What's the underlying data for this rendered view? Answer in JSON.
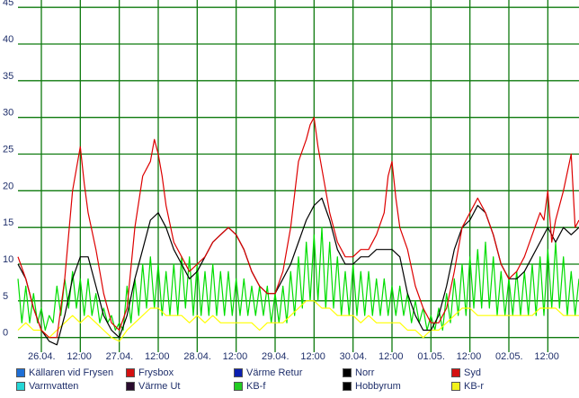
{
  "chart_data": {
    "type": "line",
    "ylim": [
      -2,
      46
    ],
    "yticks": [
      0,
      5,
      10,
      15,
      20,
      25,
      30,
      35,
      40,
      45
    ],
    "xlim": [
      0,
      7.2
    ],
    "xticks": [
      {
        "x": 0.3,
        "label": "26.04."
      },
      {
        "x": 0.8,
        "label": "12:00"
      },
      {
        "x": 1.3,
        "label": "27.04."
      },
      {
        "x": 1.8,
        "label": "12:00"
      },
      {
        "x": 2.3,
        "label": "28.04."
      },
      {
        "x": 2.8,
        "label": "12:00"
      },
      {
        "x": 3.3,
        "label": "29.04."
      },
      {
        "x": 3.8,
        "label": "12:00"
      },
      {
        "x": 4.3,
        "label": "30.04."
      },
      {
        "x": 4.8,
        "label": "12:00"
      },
      {
        "x": 5.3,
        "label": "01.05."
      },
      {
        "x": 5.8,
        "label": "12:00"
      },
      {
        "x": 6.3,
        "label": "02.05."
      },
      {
        "x": 6.8,
        "label": "12:00"
      }
    ],
    "grid": true,
    "legend_position": "bottom",
    "series": [
      {
        "name": "KB-f",
        "color": "#00dd00",
        "x": [
          0.0,
          0.05,
          0.1,
          0.15,
          0.2,
          0.25,
          0.3,
          0.35,
          0.4,
          0.45,
          0.5,
          0.55,
          0.6,
          0.65,
          0.7,
          0.75,
          0.8,
          0.85,
          0.9,
          0.95,
          1.0,
          1.05,
          1.1,
          1.15,
          1.2,
          1.25,
          1.3,
          1.35,
          1.4,
          1.45,
          1.5,
          1.55,
          1.6,
          1.65,
          1.7,
          1.75,
          1.8,
          1.85,
          1.9,
          1.95,
          2.0,
          2.05,
          2.1,
          2.15,
          2.2,
          2.25,
          2.3,
          2.35,
          2.4,
          2.45,
          2.5,
          2.55,
          2.6,
          2.65,
          2.7,
          2.75,
          2.8,
          2.85,
          2.9,
          2.95,
          3.0,
          3.05,
          3.1,
          3.15,
          3.2,
          3.25,
          3.3,
          3.35,
          3.4,
          3.45,
          3.5,
          3.55,
          3.6,
          3.65,
          3.7,
          3.75,
          3.8,
          3.85,
          3.9,
          3.95,
          4.0,
          4.05,
          4.1,
          4.15,
          4.2,
          4.25,
          4.3,
          4.35,
          4.4,
          4.45,
          4.5,
          4.55,
          4.6,
          4.65,
          4.7,
          4.75,
          4.8,
          4.85,
          4.9,
          4.95,
          5.0,
          5.05,
          5.1,
          5.15,
          5.2,
          5.25,
          5.3,
          5.35,
          5.4,
          5.45,
          5.5,
          5.55,
          5.6,
          5.65,
          5.7,
          5.75,
          5.8,
          5.85,
          5.9,
          5.95,
          6.0,
          6.05,
          6.1,
          6.15,
          6.2,
          6.25,
          6.3,
          6.35,
          6.4,
          6.45,
          6.5,
          6.55,
          6.6,
          6.65,
          6.7,
          6.75,
          6.8,
          6.85,
          6.9,
          6.95,
          7.0,
          7.05,
          7.1,
          7.15,
          7.2
        ],
        "y": [
          8,
          2,
          7,
          2,
          6,
          2,
          4,
          1,
          3,
          2,
          7,
          3,
          8,
          4,
          9,
          4,
          8,
          3,
          8,
          3,
          6,
          2,
          4,
          2,
          3,
          1,
          2,
          1,
          7,
          2,
          8,
          3,
          10,
          4,
          11,
          4,
          10,
          3,
          9,
          3,
          10,
          3,
          11,
          4,
          11,
          3,
          10,
          3,
          9,
          3,
          10,
          3,
          9,
          3,
          9,
          3,
          8,
          3,
          8,
          3,
          7,
          3,
          7,
          3,
          7,
          2,
          6,
          2,
          7,
          2,
          9,
          3,
          11,
          4,
          13,
          5,
          14,
          5,
          15,
          4,
          13,
          4,
          11,
          3,
          9,
          3,
          10,
          3,
          9,
          3,
          9,
          3,
          8,
          3,
          8,
          3,
          7,
          3,
          7,
          3,
          6,
          2,
          5,
          2,
          4,
          1,
          3,
          1,
          4,
          1,
          6,
          2,
          8,
          3,
          10,
          3,
          11,
          4,
          12,
          4,
          13,
          4,
          11,
          3,
          9,
          3,
          8,
          3,
          9,
          3,
          9,
          3,
          10,
          3,
          11,
          3,
          12,
          4,
          13,
          4,
          11,
          3,
          9,
          3,
          8
        ]
      },
      {
        "name": "KB-r",
        "color": "#ffff00",
        "x": [
          0.0,
          0.1,
          0.2,
          0.3,
          0.4,
          0.5,
          0.6,
          0.7,
          0.8,
          0.9,
          1.0,
          1.1,
          1.2,
          1.3,
          1.4,
          1.5,
          1.6,
          1.7,
          1.8,
          1.9,
          2.0,
          2.1,
          2.2,
          2.3,
          2.4,
          2.5,
          2.6,
          2.7,
          2.8,
          2.9,
          3.0,
          3.1,
          3.2,
          3.3,
          3.4,
          3.5,
          3.6,
          3.7,
          3.8,
          3.9,
          4.0,
          4.1,
          4.2,
          4.3,
          4.4,
          4.5,
          4.6,
          4.7,
          4.8,
          4.9,
          5.0,
          5.1,
          5.2,
          5.3,
          5.4,
          5.5,
          5.6,
          5.7,
          5.8,
          5.9,
          6.0,
          6.1,
          6.2,
          6.3,
          6.4,
          6.5,
          6.6,
          6.7,
          6.8,
          6.9,
          7.0,
          7.1,
          7.2
        ],
        "y": [
          1,
          2,
          1,
          1,
          0,
          1,
          2,
          3,
          2,
          3,
          2,
          1,
          0,
          -0.5,
          1,
          2,
          3,
          4,
          4,
          3,
          3,
          3,
          2,
          3,
          2,
          3,
          2,
          2,
          2,
          2,
          2,
          1,
          2,
          2,
          2,
          3,
          4,
          5,
          5,
          4,
          4,
          3,
          3,
          3,
          2,
          3,
          2,
          2,
          2,
          2,
          1,
          1,
          0,
          1,
          1,
          2,
          3,
          4,
          4,
          3,
          3,
          3,
          3,
          3,
          3,
          3,
          3,
          4,
          4,
          4,
          3,
          3,
          3
        ]
      },
      {
        "name": "Norr",
        "color": "#000000",
        "x": [
          0.0,
          0.1,
          0.2,
          0.3,
          0.4,
          0.5,
          0.6,
          0.7,
          0.8,
          0.9,
          1.0,
          1.1,
          1.2,
          1.3,
          1.4,
          1.5,
          1.6,
          1.7,
          1.8,
          1.9,
          2.0,
          2.1,
          2.2,
          2.3,
          2.4,
          2.5,
          2.6,
          2.7,
          2.8,
          2.9,
          3.0,
          3.1,
          3.2,
          3.3,
          3.4,
          3.5,
          3.6,
          3.7,
          3.8,
          3.9,
          4.0,
          4.1,
          4.2,
          4.3,
          4.4,
          4.5,
          4.6,
          4.7,
          4.8,
          4.9,
          5.0,
          5.1,
          5.2,
          5.3,
          5.4,
          5.5,
          5.6,
          5.7,
          5.8,
          5.9,
          6.0,
          6.1,
          6.2,
          6.3,
          6.4,
          6.5,
          6.6,
          6.7,
          6.8,
          6.9,
          7.0,
          7.1,
          7.2
        ],
        "y": [
          10,
          8,
          4,
          1,
          -0.5,
          -1,
          3,
          8,
          11,
          11,
          7,
          3,
          1,
          0,
          3,
          8,
          12,
          16,
          17,
          15,
          12,
          10,
          8,
          9,
          11,
          13,
          14,
          15,
          14,
          12,
          9,
          7,
          6,
          6,
          8,
          10,
          13,
          16,
          18,
          19,
          16,
          12,
          10,
          10,
          11,
          11,
          12,
          12,
          12,
          11,
          6,
          3,
          1,
          1,
          3,
          7,
          12,
          15,
          16,
          18,
          17,
          14,
          10,
          8,
          8,
          9,
          11,
          13,
          15,
          13,
          15,
          14,
          15
        ]
      },
      {
        "name": "Syd",
        "color": "#dd0000",
        "x": [
          0.0,
          0.1,
          0.2,
          0.3,
          0.4,
          0.5,
          0.6,
          0.7,
          0.75,
          0.8,
          0.85,
          0.9,
          1.0,
          1.1,
          1.2,
          1.3,
          1.4,
          1.5,
          1.6,
          1.7,
          1.75,
          1.8,
          1.85,
          1.9,
          2.0,
          2.1,
          2.2,
          2.3,
          2.4,
          2.5,
          2.6,
          2.7,
          2.8,
          2.9,
          3.0,
          3.1,
          3.2,
          3.3,
          3.4,
          3.5,
          3.6,
          3.7,
          3.75,
          3.8,
          3.85,
          3.9,
          4.0,
          4.1,
          4.2,
          4.3,
          4.4,
          4.5,
          4.6,
          4.7,
          4.75,
          4.8,
          4.85,
          4.9,
          5.0,
          5.1,
          5.2,
          5.3,
          5.4,
          5.5,
          5.6,
          5.7,
          5.8,
          5.9,
          6.0,
          6.1,
          6.2,
          6.3,
          6.4,
          6.5,
          6.6,
          6.7,
          6.75,
          6.8,
          6.85,
          6.9,
          7.0,
          7.1,
          7.15,
          7.2
        ],
        "y": [
          11,
          8,
          4,
          1,
          0,
          0,
          8,
          20,
          23,
          26,
          21,
          17,
          12,
          6,
          2,
          1,
          4,
          15,
          22,
          24,
          27,
          25,
          22,
          18,
          13,
          11,
          9,
          10,
          11,
          13,
          14,
          15,
          14,
          12,
          9,
          7,
          6,
          6,
          9,
          15,
          24,
          27,
          29,
          30,
          26,
          23,
          17,
          13,
          11,
          11,
          12,
          12,
          14,
          17,
          22,
          24,
          19,
          15,
          12,
          7,
          4,
          2,
          2,
          4,
          9,
          15,
          17,
          19,
          17,
          14,
          10,
          8,
          9,
          11,
          14,
          17,
          16,
          20,
          13,
          16,
          20,
          25,
          15,
          16
        ]
      }
    ]
  },
  "legend": [
    {
      "label": "Källaren vid Frysen",
      "color": "#1f6fd6"
    },
    {
      "label": "Frysbox",
      "color": "#d41111"
    },
    {
      "label": "Värme Retur",
      "color": "#0b1fb0"
    },
    {
      "label": "Norr",
      "color": "#000000"
    },
    {
      "label": "Syd",
      "color": "#d41111"
    },
    {
      "label": "Varmvatten",
      "color": "#25d6d6"
    },
    {
      "label": "Värme Ut",
      "color": "#2a0c2e"
    },
    {
      "label": "KB-f",
      "color": "#22cc22"
    },
    {
      "label": "Hobbyrum",
      "color": "#000000"
    },
    {
      "label": "KB-r",
      "color": "#f2f21a"
    }
  ]
}
